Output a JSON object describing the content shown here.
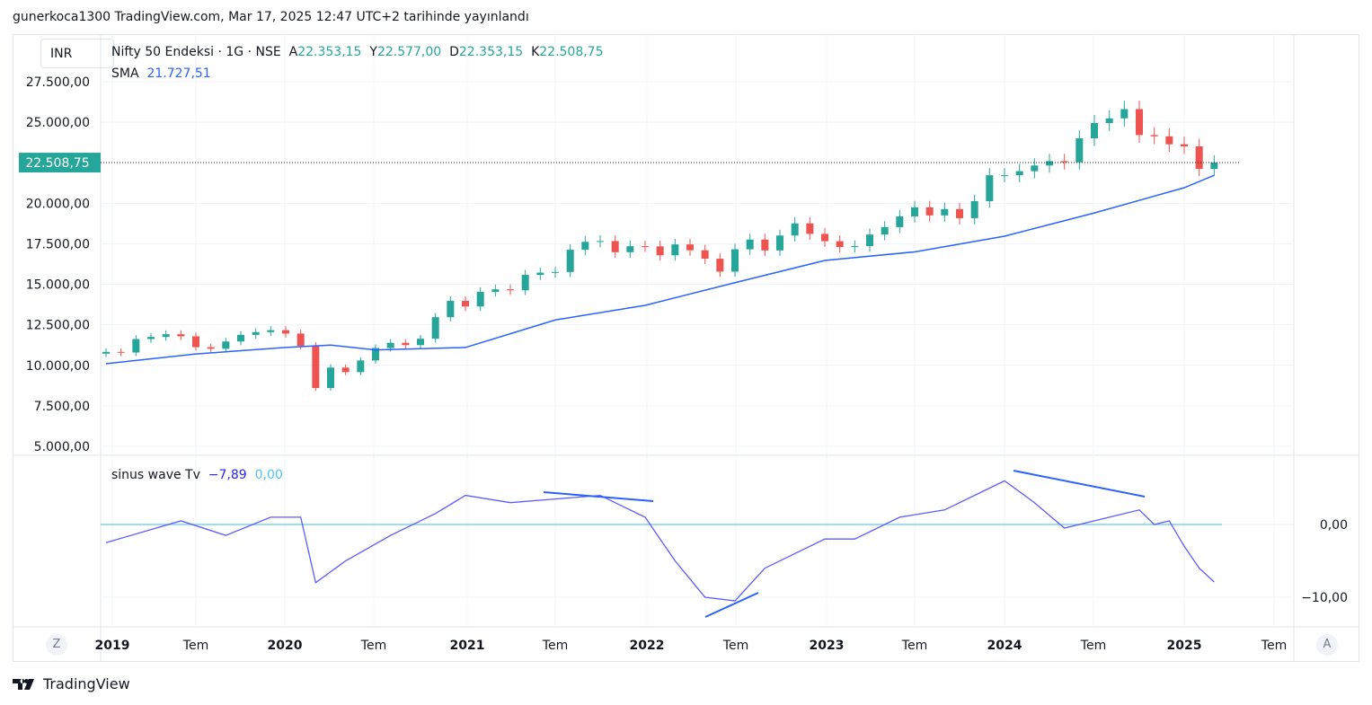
{
  "publish_line": "gunerkoca1300 TradingView.com, Mar 17, 2025 12:47 UTC+2 tarihinde yayınlandı",
  "currency": "INR",
  "legend": {
    "symbol": "Nifty 50 Endeksi · 1G · NSE",
    "o_label": "A",
    "o": "22.353,15",
    "h_label": "Y",
    "h": "22.577,00",
    "l_label": "D",
    "l": "22.353,15",
    "c_label": "K",
    "c": "22.508,75",
    "sma_label": "SMA",
    "sma": "21.727,51"
  },
  "osc_legend": {
    "name": "sinus wave Tv",
    "v1": "−7,89",
    "v2": "0,00"
  },
  "last_price_label": "22.508,75",
  "buttons": {
    "z": "Z",
    "a": "A"
  },
  "logo": "TradingView",
  "colors": {
    "up": "#26a69a",
    "down": "#ef5350",
    "sma": "#2962ff",
    "osc": "#5b5bff",
    "zero": "#7ed3ec",
    "last": "#26a69a"
  },
  "chart_data": [
    {
      "type": "candlestick",
      "ylim": [
        5000,
        27500
      ],
      "y_ticks": [
        "27.500,00",
        "25.000,00",
        "20.000,00",
        "17.500,00",
        "15.000,00",
        "12.500,00",
        "10.000,00",
        "7.500,00",
        "5.000,00"
      ],
      "y_tick_values": [
        27500,
        25000,
        20000,
        17500,
        15000,
        12500,
        10000,
        7500,
        5000
      ],
      "x_ticks": [
        "2019",
        "Tem",
        "2020",
        "Tem",
        "2021",
        "Tem",
        "2022",
        "Tem",
        "2023",
        "Tem",
        "2024",
        "Tem",
        "2025",
        "Tem"
      ],
      "start": "2019-01",
      "interval": "month",
      "close": [
        10830,
        10790,
        11620,
        11750,
        11920,
        11790,
        11120,
        11020,
        11470,
        11880,
        12050,
        12170,
        11960,
        11200,
        8600,
        9860,
        9580,
        10300,
        11070,
        11390,
        11250,
        11640,
        12970,
        13980,
        13630,
        14530,
        14690,
        14630,
        15580,
        15720,
        15760,
        17130,
        17620,
        17670,
        16980,
        17350,
        17340,
        16790,
        17460,
        17100,
        16580,
        15780,
        17160,
        17760,
        17090,
        18010,
        18760,
        18110,
        17660,
        17300,
        17360,
        18070,
        18530,
        19190,
        19750,
        19250,
        19640,
        19080,
        20130,
        21730,
        21730,
        21980,
        22330,
        22600,
        22530,
        24010,
        24950,
        25240,
        25810,
        24210,
        24130,
        23640,
        23510,
        22120,
        22509
      ],
      "sma": {
        "dates": [
          "2019-01",
          "2019-07",
          "2020-01",
          "2020-04",
          "2020-07",
          "2021-01",
          "2021-07",
          "2022-01",
          "2022-07",
          "2023-01",
          "2023-07",
          "2024-01",
          "2024-07",
          "2025-01",
          "2025-03"
        ],
        "values": [
          10100,
          10700,
          11100,
          11250,
          10950,
          11100,
          12800,
          13700,
          15100,
          16470,
          17000,
          17970,
          19400,
          20960,
          21727
        ]
      }
    },
    {
      "type": "line",
      "name": "sinus wave Tv",
      "ylim": [
        -13,
        9
      ],
      "y_ticks": [
        "0,00",
        "−10,00"
      ],
      "y_tick_values": [
        0,
        -10
      ],
      "zero_line": 0,
      "dates": [
        "2019-01",
        "2019-06",
        "2019-09",
        "2019-12",
        "2020-02",
        "2020-03",
        "2020-05",
        "2020-08",
        "2020-11",
        "2021-01",
        "2021-04",
        "2021-07",
        "2021-10",
        "2021-12",
        "2022-01",
        "2022-03",
        "2022-05",
        "2022-07",
        "2022-09",
        "2022-11",
        "2023-01",
        "2023-03",
        "2023-06",
        "2023-09",
        "2023-12",
        "2024-01",
        "2024-03",
        "2024-05",
        "2024-08",
        "2024-10",
        "2024-11",
        "2024-12",
        "2025-01",
        "2025-02",
        "2025-03"
      ],
      "values": [
        -2.5,
        0.5,
        -1.5,
        1,
        1,
        -8,
        -5,
        -1.5,
        1.5,
        4,
        3,
        3.5,
        4,
        2,
        1,
        -5,
        -10,
        -10.5,
        -6,
        -4,
        -2,
        -2,
        1,
        2,
        5,
        6,
        3,
        -0.5,
        1,
        2,
        0,
        0.5,
        -3,
        -6,
        -7.9
      ]
    }
  ]
}
